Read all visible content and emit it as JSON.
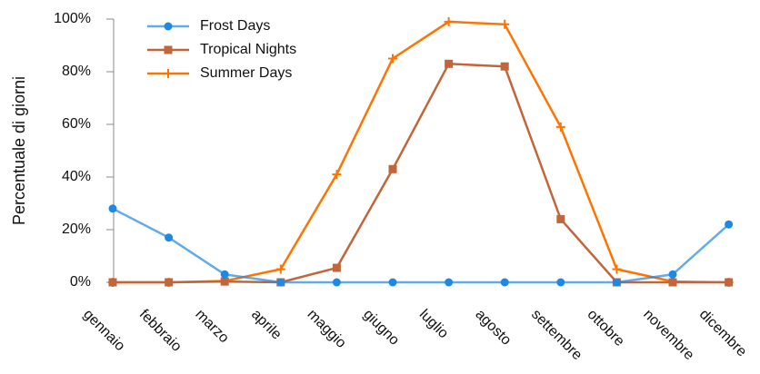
{
  "chart_data": {
    "type": "line",
    "y_label": "Percentuale di giorni",
    "categories": [
      "gennaio",
      "febbraio",
      "marzo",
      "aprile",
      "maggio",
      "giugno",
      "luglio",
      "agosto",
      "settembre",
      "ottobre",
      "novembre",
      "dicembre"
    ],
    "series": [
      {
        "name": "Frost Days",
        "color": "#1e88e5",
        "marker": "circle",
        "values": [
          28,
          17,
          3,
          0,
          0,
          0,
          0,
          0,
          0,
          0,
          3,
          22
        ]
      },
      {
        "name": "Tropical Nights",
        "color": "#c2653a",
        "marker": "square",
        "values": [
          0,
          0,
          0.3,
          0,
          5.5,
          43,
          83,
          82,
          24,
          0,
          0,
          0
        ]
      },
      {
        "name": "Summer Days",
        "color": "#ff7400",
        "marker": "plus",
        "values": [
          0,
          0,
          0.5,
          5,
          41,
          85,
          99,
          98,
          59,
          5,
          0.3,
          0
        ]
      }
    ],
    "ylim": [
      0,
      100
    ],
    "yticks": [
      {
        "value": 0,
        "label": "0%"
      },
      {
        "value": 20,
        "label": "20%"
      },
      {
        "value": 40,
        "label": "40%"
      },
      {
        "value": 60,
        "label": "60%"
      },
      {
        "value": 80,
        "label": "80%"
      },
      {
        "value": 100,
        "label": "100%"
      }
    ],
    "legend": "upper left"
  }
}
